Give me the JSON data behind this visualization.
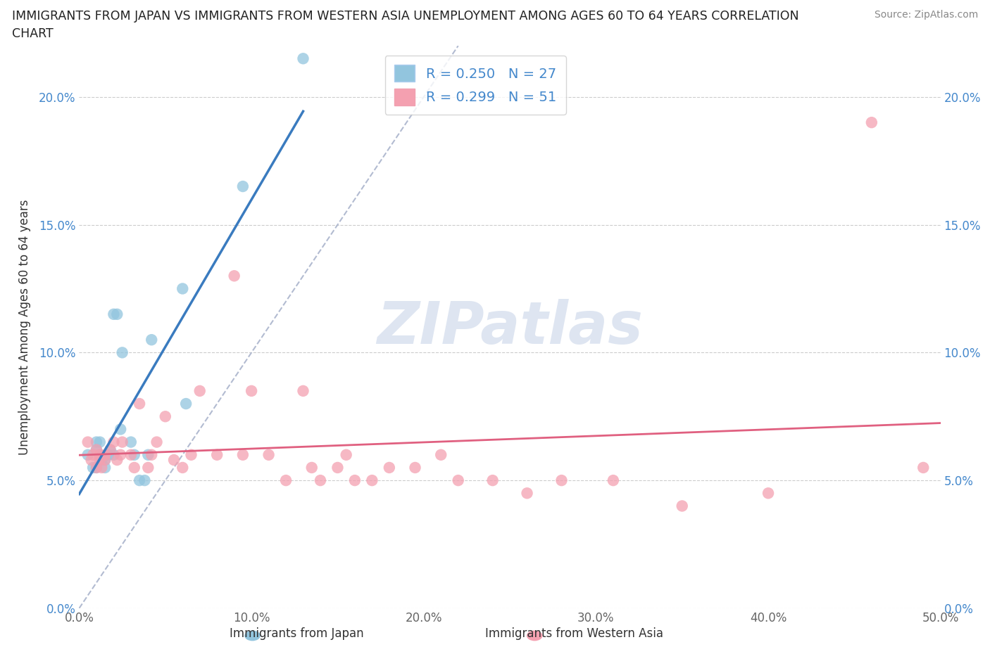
{
  "title_line1": "IMMIGRANTS FROM JAPAN VS IMMIGRANTS FROM WESTERN ASIA UNEMPLOYMENT AMONG AGES 60 TO 64 YEARS CORRELATION",
  "title_line2": "CHART",
  "source": "Source: ZipAtlas.com",
  "ylabel": "Unemployment Among Ages 60 to 64 years",
  "xlabel_japan": "Immigrants from Japan",
  "xlabel_western_asia": "Immigrants from Western Asia",
  "R_japan": 0.25,
  "N_japan": 27,
  "R_western_asia": 0.299,
  "N_western_asia": 51,
  "xlim": [
    0.0,
    0.5
  ],
  "ylim": [
    0.0,
    0.22
  ],
  "xticks": [
    0.0,
    0.1,
    0.2,
    0.3,
    0.4,
    0.5
  ],
  "yticks": [
    0.0,
    0.05,
    0.1,
    0.15,
    0.2
  ],
  "xtick_labels": [
    "0.0%",
    "10.0%",
    "20.0%",
    "30.0%",
    "40.0%",
    "50.0%"
  ],
  "ytick_labels": [
    "0.0%",
    "5.0%",
    "10.0%",
    "15.0%",
    "20.0%"
  ],
  "color_japan": "#92c5de",
  "color_western_asia": "#f4a0b0",
  "trendline_japan": "#3a7bbf",
  "trendline_western_asia": "#e06080",
  "trendline_diagonal_color": "#aab4cc",
  "watermark": "ZIPatlas",
  "background_color": "#ffffff",
  "grid_color": "#cccccc",
  "japan_x": [
    0.005,
    0.008,
    0.01,
    0.01,
    0.01,
    0.012,
    0.012,
    0.013,
    0.015,
    0.015,
    0.017,
    0.018,
    0.02,
    0.02,
    0.022,
    0.024,
    0.025,
    0.03,
    0.032,
    0.035,
    0.038,
    0.04,
    0.042,
    0.06,
    0.062,
    0.095,
    0.13
  ],
  "japan_y": [
    0.06,
    0.055,
    0.062,
    0.065,
    0.055,
    0.06,
    0.065,
    0.058,
    0.055,
    0.058,
    0.06,
    0.062,
    0.115,
    0.06,
    0.115,
    0.07,
    0.1,
    0.065,
    0.06,
    0.05,
    0.05,
    0.06,
    0.105,
    0.125,
    0.08,
    0.165,
    0.215
  ],
  "western_asia_x": [
    0.005,
    0.007,
    0.008,
    0.01,
    0.01,
    0.012,
    0.012,
    0.013,
    0.015,
    0.015,
    0.018,
    0.02,
    0.022,
    0.024,
    0.025,
    0.03,
    0.032,
    0.035,
    0.04,
    0.042,
    0.045,
    0.05,
    0.055,
    0.06,
    0.065,
    0.07,
    0.08,
    0.09,
    0.095,
    0.1,
    0.11,
    0.12,
    0.13,
    0.135,
    0.14,
    0.15,
    0.155,
    0.16,
    0.17,
    0.18,
    0.195,
    0.21,
    0.22,
    0.24,
    0.26,
    0.28,
    0.31,
    0.35,
    0.4,
    0.46,
    0.49
  ],
  "western_asia_y": [
    0.065,
    0.058,
    0.06,
    0.062,
    0.055,
    0.058,
    0.06,
    0.055,
    0.06,
    0.058,
    0.062,
    0.065,
    0.058,
    0.06,
    0.065,
    0.06,
    0.055,
    0.08,
    0.055,
    0.06,
    0.065,
    0.075,
    0.058,
    0.055,
    0.06,
    0.085,
    0.06,
    0.13,
    0.06,
    0.085,
    0.06,
    0.05,
    0.085,
    0.055,
    0.05,
    0.055,
    0.06,
    0.05,
    0.05,
    0.055,
    0.055,
    0.06,
    0.05,
    0.05,
    0.045,
    0.05,
    0.05,
    0.04,
    0.045,
    0.19,
    0.055
  ]
}
